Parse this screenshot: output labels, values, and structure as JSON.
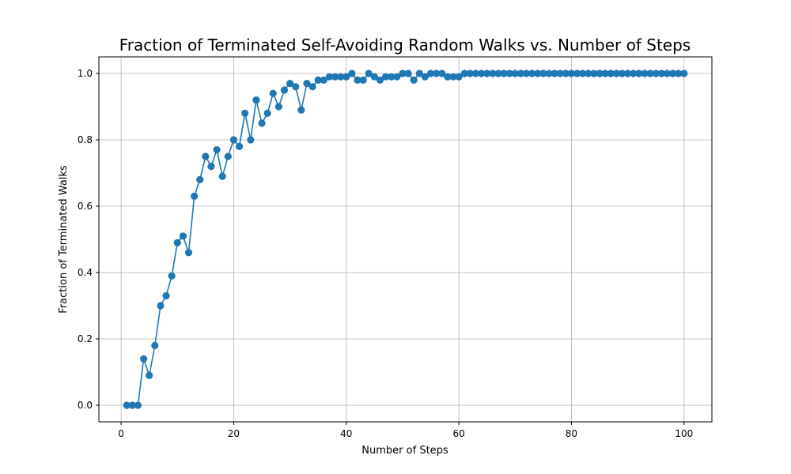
{
  "chart_data": {
    "type": "line",
    "title": "Fraction of Terminated Self-Avoiding Random Walks vs. Number of Steps",
    "xlabel": "Number of Steps",
    "ylabel": "Fraction of Terminated Walks",
    "xlim": [
      -3.95,
      104.95
    ],
    "ylim": [
      -0.05,
      1.05
    ],
    "x_ticks": [
      0,
      20,
      40,
      60,
      80,
      100
    ],
    "y_ticks": [
      0.0,
      0.2,
      0.4,
      0.6,
      0.8,
      1.0
    ],
    "x_tick_labels": [
      "0",
      "20",
      "40",
      "60",
      "80",
      "100"
    ],
    "y_tick_labels": [
      "0.0",
      "0.2",
      "0.4",
      "0.6",
      "0.8",
      "1.0"
    ],
    "grid": true,
    "marker": "circle",
    "color": "#1f77b4",
    "x": [
      1,
      2,
      3,
      4,
      5,
      6,
      7,
      8,
      9,
      10,
      11,
      12,
      13,
      14,
      15,
      16,
      17,
      18,
      19,
      20,
      21,
      22,
      23,
      24,
      25,
      26,
      27,
      28,
      29,
      30,
      31,
      32,
      33,
      34,
      35,
      36,
      37,
      38,
      39,
      40,
      41,
      42,
      43,
      44,
      45,
      46,
      47,
      48,
      49,
      50,
      51,
      52,
      53,
      54,
      55,
      56,
      57,
      58,
      59,
      60,
      61,
      62,
      63,
      64,
      65,
      66,
      67,
      68,
      69,
      70,
      71,
      72,
      73,
      74,
      75,
      76,
      77,
      78,
      79,
      80,
      81,
      82,
      83,
      84,
      85,
      86,
      87,
      88,
      89,
      90,
      91,
      92,
      93,
      94,
      95,
      96,
      97,
      98,
      99,
      100
    ],
    "values": [
      0.0,
      0.0,
      0.0,
      0.14,
      0.09,
      0.18,
      0.3,
      0.33,
      0.39,
      0.49,
      0.51,
      0.46,
      0.63,
      0.68,
      0.75,
      0.72,
      0.77,
      0.69,
      0.75,
      0.8,
      0.78,
      0.88,
      0.8,
      0.92,
      0.85,
      0.88,
      0.94,
      0.9,
      0.95,
      0.97,
      0.96,
      0.89,
      0.97,
      0.96,
      0.98,
      0.98,
      0.99,
      0.99,
      0.99,
      0.99,
      1.0,
      0.98,
      0.98,
      1.0,
      0.99,
      0.98,
      0.99,
      0.99,
      0.99,
      1.0,
      1.0,
      0.98,
      1.0,
      0.99,
      1.0,
      1.0,
      1.0,
      0.99,
      0.99,
      0.99,
      1.0,
      1.0,
      1.0,
      1.0,
      1.0,
      1.0,
      1.0,
      1.0,
      1.0,
      1.0,
      1.0,
      1.0,
      1.0,
      1.0,
      1.0,
      1.0,
      1.0,
      1.0,
      1.0,
      1.0,
      1.0,
      1.0,
      1.0,
      1.0,
      1.0,
      1.0,
      1.0,
      1.0,
      1.0,
      1.0,
      1.0,
      1.0,
      1.0,
      1.0,
      1.0,
      1.0,
      1.0,
      1.0,
      1.0,
      1.0
    ]
  }
}
